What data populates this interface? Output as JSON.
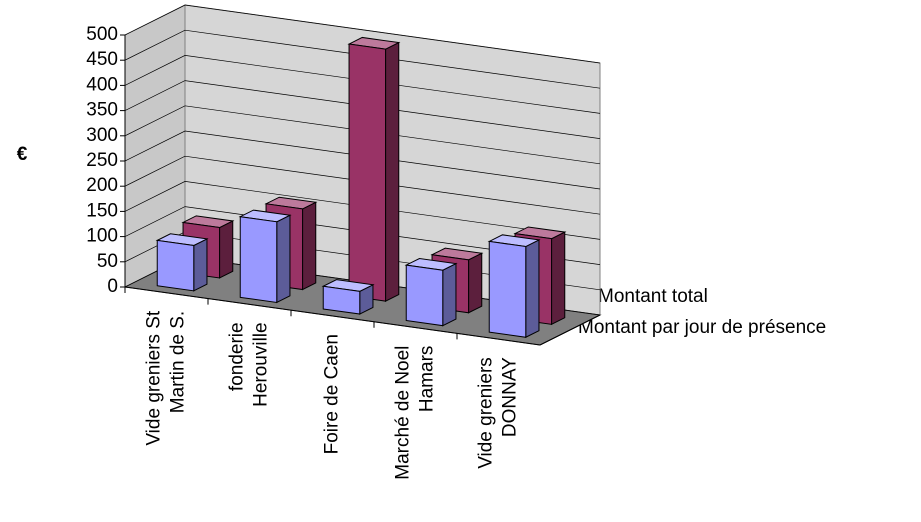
{
  "chart_data": {
    "type": "bar3d",
    "y_label": "€",
    "categories": [
      "Vide greniers St\nMartin de S.",
      "fonderie\nHerouville",
      "Foire de Caen",
      "Marché de Noel\nHamars",
      "Vide greniers\nDONNAY"
    ],
    "series": [
      {
        "name": "Montant total",
        "color": "#993366",
        "values": [
          100,
          160,
          500,
          105,
          170
        ]
      },
      {
        "name": "Montant par jour de présence",
        "color": "#9999ff",
        "values": [
          90,
          160,
          45,
          110,
          180
        ]
      }
    ],
    "ylim": [
      0,
      500
    ],
    "yticks": [
      0,
      50,
      100,
      150,
      200,
      250,
      300,
      350,
      400,
      450,
      500
    ],
    "grid": true
  }
}
